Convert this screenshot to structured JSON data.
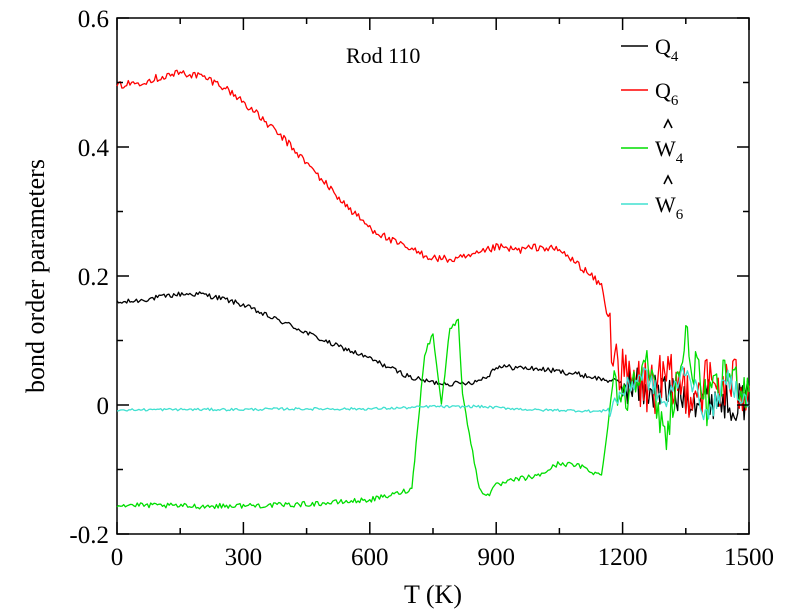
{
  "chart_data": {
    "type": "line",
    "title": "",
    "annotation": "Rod 110",
    "xlabel": "T (K)",
    "ylabel": "bond order parameters",
    "xlim": [
      0,
      1500
    ],
    "ylim": [
      -0.2,
      0.6
    ],
    "x_ticks": [
      0,
      300,
      600,
      900,
      1200,
      1500
    ],
    "x_tick_labels": [
      "0",
      "300",
      "600",
      "900",
      "1200",
      "1500"
    ],
    "y_ticks": [
      -0.2,
      0,
      0.2,
      0.4,
      0.6
    ],
    "y_tick_labels": [
      "-0.2",
      "0",
      "0.2",
      "0.4",
      "0.6"
    ],
    "grid": false,
    "legend_position": "top-right",
    "series": [
      {
        "name": "Q4",
        "legend_main": "Q",
        "legend_sub": "4",
        "hat": false,
        "color": "#000000",
        "noise": 0.004,
        "x": [
          0,
          50,
          100,
          150,
          200,
          250,
          300,
          350,
          400,
          450,
          500,
          550,
          600,
          650,
          700,
          750,
          800,
          850,
          880,
          900,
          950,
          1000,
          1050,
          1100,
          1150,
          1200,
          1250,
          1300,
          1350,
          1400,
          1450,
          1500
        ],
        "y": [
          0.158,
          0.162,
          0.167,
          0.172,
          0.172,
          0.165,
          0.155,
          0.14,
          0.127,
          0.112,
          0.097,
          0.085,
          0.072,
          0.057,
          0.042,
          0.035,
          0.033,
          0.036,
          0.045,
          0.06,
          0.058,
          0.056,
          0.052,
          0.047,
          0.04,
          0.035,
          0.025,
          0.02,
          0.015,
          0.012,
          0.008,
          0.005
        ]
      },
      {
        "name": "Q6",
        "legend_main": "Q",
        "legend_sub": "6",
        "hat": false,
        "color": "#ff0000",
        "noise": 0.006,
        "x": [
          0,
          50,
          100,
          150,
          200,
          250,
          300,
          350,
          400,
          450,
          500,
          550,
          600,
          650,
          700,
          750,
          800,
          850,
          900,
          950,
          1000,
          1050,
          1100,
          1150,
          1170,
          1200,
          1250,
          1300,
          1350,
          1400,
          1450,
          1500
        ],
        "y": [
          0.495,
          0.5,
          0.508,
          0.515,
          0.51,
          0.495,
          0.47,
          0.44,
          0.41,
          0.375,
          0.34,
          0.305,
          0.275,
          0.255,
          0.24,
          0.228,
          0.225,
          0.232,
          0.245,
          0.24,
          0.245,
          0.24,
          0.215,
          0.185,
          0.12,
          0.04,
          0.03,
          0.032,
          0.028,
          0.03,
          0.03,
          0.03
        ]
      },
      {
        "name": "W4 (hat)",
        "legend_main": "W",
        "legend_sub": "4",
        "hat": true,
        "color": "#00dd00",
        "noise": 0.004,
        "x": [
          0,
          100,
          200,
          300,
          400,
          500,
          600,
          650,
          700,
          710,
          730,
          750,
          770,
          790,
          810,
          820,
          840,
          860,
          880,
          900,
          950,
          1000,
          1050,
          1100,
          1150,
          1180,
          1200,
          1250,
          1300,
          1350,
          1400,
          1450,
          1500
        ],
        "y": [
          -0.155,
          -0.156,
          -0.157,
          -0.156,
          -0.155,
          -0.152,
          -0.147,
          -0.14,
          -0.13,
          -0.06,
          0.08,
          0.11,
          0.0,
          0.12,
          0.13,
          0.02,
          -0.06,
          -0.13,
          -0.14,
          -0.125,
          -0.115,
          -0.11,
          -0.09,
          -0.095,
          -0.11,
          0.05,
          0.0,
          0.08,
          -0.05,
          0.1,
          0.0,
          0.05,
          0.02
        ]
      },
      {
        "name": "W6 (hat)",
        "legend_main": "W",
        "legend_sub": "6",
        "hat": true,
        "color": "#40e0d0",
        "noise": 0.002,
        "x": [
          0,
          100,
          200,
          300,
          400,
          500,
          600,
          700,
          750,
          800,
          850,
          900,
          950,
          1000,
          1050,
          1100,
          1150,
          1170,
          1200,
          1250,
          1300,
          1350,
          1400,
          1450,
          1500
        ],
        "y": [
          -0.008,
          -0.007,
          -0.007,
          -0.007,
          -0.006,
          -0.006,
          -0.006,
          -0.004,
          -0.002,
          -0.003,
          -0.002,
          -0.004,
          -0.006,
          -0.008,
          -0.008,
          -0.009,
          -0.01,
          -0.005,
          0.02,
          0.05,
          0.0,
          0.06,
          -0.02,
          0.04,
          0.0
        ]
      }
    ]
  }
}
